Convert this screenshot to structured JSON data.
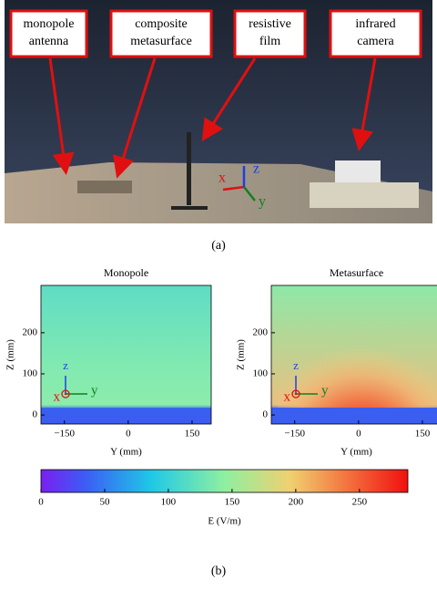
{
  "photo": {
    "labels": [
      [
        "monopole",
        "antenna"
      ],
      [
        "composite",
        "metasurface"
      ],
      [
        "resistive",
        "film"
      ],
      [
        "infrared",
        "camera"
      ]
    ],
    "axes": {
      "x": "x",
      "y": "y",
      "z": "z"
    }
  },
  "caption_a": "(a)",
  "plots": [
    {
      "title": "Monopole",
      "xlabel": "Y (mm)",
      "ylabel": "Z (mm)",
      "xlim": [
        -205,
        195
      ],
      "ylim": [
        -22,
        315
      ],
      "xticks": [
        {
          "value": -150,
          "label": "−150"
        },
        0,
        150
      ],
      "yticks": [
        0,
        100,
        200
      ],
      "frame": {
        "z": "z",
        "y": "y",
        "x": "x"
      }
    },
    {
      "title": "Metasurface",
      "xlabel": "Y (mm)",
      "ylabel": "Z (mm)",
      "xlim": [
        -205,
        195
      ],
      "ylim": [
        -22,
        315
      ],
      "xticks": [
        {
          "value": -150,
          "label": "−150"
        },
        0,
        150
      ],
      "yticks": [
        0,
        100,
        200
      ],
      "frame": {
        "z": "z",
        "y": "y",
        "x": "x"
      }
    }
  ],
  "colorbar": {
    "label": "E (V/m)",
    "lim": [
      0,
      288
    ],
    "ticks": [
      0,
      50,
      100,
      150,
      200,
      250
    ]
  },
  "caption_b": "(b)"
}
